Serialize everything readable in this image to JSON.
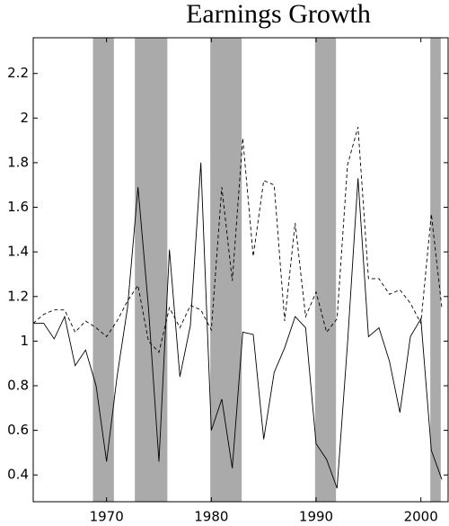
{
  "chart_data": {
    "type": "line",
    "title": "Earnings Growth",
    "x": [
      1963,
      1964,
      1965,
      1966,
      1967,
      1968,
      1969,
      1970,
      1971,
      1972,
      1973,
      1974,
      1975,
      1976,
      1977,
      1978,
      1979,
      1980,
      1981,
      1982,
      1983,
      1984,
      1985,
      1986,
      1987,
      1988,
      1989,
      1990,
      1991,
      1992,
      1993,
      1994,
      1995,
      1996,
      1997,
      1998,
      1999,
      2000,
      2001,
      2002
    ],
    "series": [
      {
        "color": "#000000",
        "style": "solid",
        "values": [
          1.08,
          1.08,
          1.01,
          1.11,
          0.89,
          0.96,
          0.8,
          0.46,
          0.84,
          1.15,
          1.69,
          1.15,
          0.46,
          1.41,
          0.84,
          1.07,
          1.8,
          0.6,
          0.74,
          0.43,
          1.04,
          1.03,
          0.56,
          0.86,
          0.97,
          1.11,
          1.06,
          0.54,
          0.47,
          0.34,
          0.99,
          1.73,
          1.02,
          1.06,
          0.91,
          0.68,
          1.02,
          1.1,
          0.51,
          0.38
        ]
      },
      {
        "color": "#000000",
        "style": "dashed",
        "values": [
          1.08,
          1.12,
          1.14,
          1.14,
          1.04,
          1.09,
          1.06,
          1.02,
          1.09,
          1.18,
          1.25,
          1.0,
          0.95,
          1.15,
          1.06,
          1.16,
          1.14,
          1.05,
          1.69,
          1.27,
          1.91,
          1.38,
          1.72,
          1.7,
          1.09,
          1.53,
          1.11,
          1.22,
          1.04,
          1.1,
          1.79,
          1.96,
          1.28,
          1.28,
          1.21,
          1.23,
          1.17,
          1.08,
          1.57,
          1.15
        ]
      }
    ],
    "shading": [
      [
        1968.7,
        1970.7
      ],
      [
        1972.7,
        1975.8
      ],
      [
        1979.9,
        1982.9
      ],
      [
        1989.9,
        1991.9
      ],
      [
        2000.9,
        2001.9
      ]
    ],
    "shading_color": "#aaaaaa",
    "xlim": [
      1963,
      2002.6
    ],
    "xticks": [
      1970,
      1980,
      1990,
      2000
    ],
    "ylim": [
      0.28,
      2.36
    ],
    "yticks": [
      0.4,
      0.6,
      0.8,
      1,
      1.2,
      1.4,
      1.6,
      1.8,
      2,
      2.2
    ]
  }
}
